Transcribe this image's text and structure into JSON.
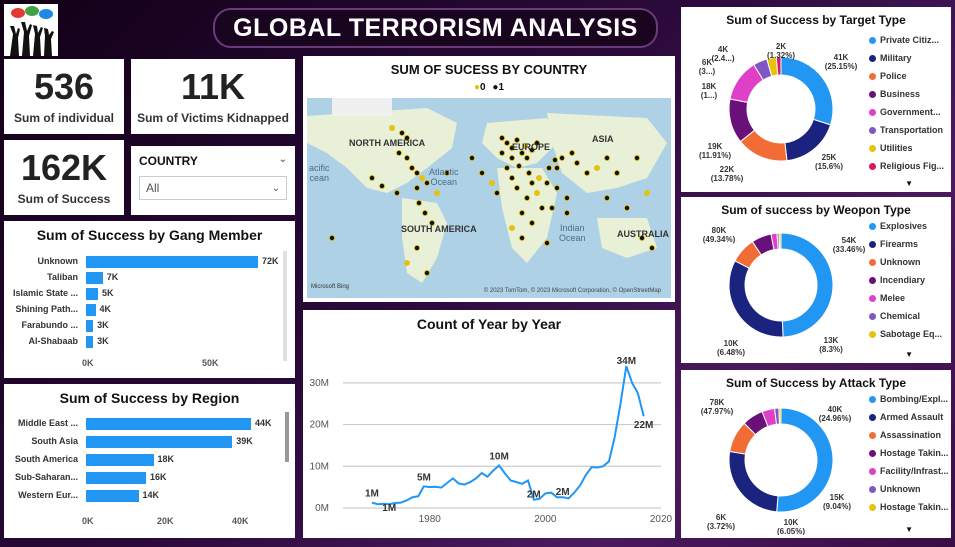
{
  "dashboard": {
    "title": "GLOBAL TERRORISM ANALYSIS"
  },
  "kpis": {
    "individual": {
      "value": "536",
      "label": "Sum of individual"
    },
    "kidnapped": {
      "value": "11K",
      "label": "Sum of Victims Kidnapped"
    },
    "success": {
      "value": "162K",
      "label": "Sum of Success"
    }
  },
  "slicer": {
    "label": "COUNTRY",
    "value": "All"
  },
  "gang_chart": {
    "title": "Sum of Success by Gang Member",
    "items": [
      {
        "label": "Unknown",
        "value": 72,
        "text": "72K"
      },
      {
        "label": "Taliban",
        "value": 7,
        "text": "7K"
      },
      {
        "label": "Islamic State ...",
        "value": 5,
        "text": "5K"
      },
      {
        "label": "Shining Path...",
        "value": 4,
        "text": "4K"
      },
      {
        "label": "Farabundo ...",
        "value": 3,
        "text": "3K"
      },
      {
        "label": "Al-Shabaab",
        "value": 3,
        "text": "3K"
      }
    ],
    "axis": [
      "0K",
      "50K"
    ]
  },
  "region_chart": {
    "title": "Sum of Success by Region",
    "items": [
      {
        "label": "Middle East ...",
        "value": 44,
        "text": "44K"
      },
      {
        "label": "South Asia",
        "value": 39,
        "text": "39K"
      },
      {
        "label": "South America",
        "value": 18,
        "text": "18K"
      },
      {
        "label": "Sub-Saharan...",
        "value": 16,
        "text": "16K"
      },
      {
        "label": "Western Eur...",
        "value": 14,
        "text": "14K"
      }
    ],
    "axis": [
      "0K",
      "20K",
      "40K"
    ]
  },
  "map": {
    "title": "SUM OF SUCESS BY COUNTRY",
    "legend": [
      "0",
      "1"
    ],
    "labels": {
      "na": "NORTH AMERICA",
      "sa": "SOUTH AMERICA",
      "eu": "EUROPE",
      "asia": "ASIA",
      "aus": "AUSTRALIA"
    },
    "oceans": {
      "pacific": "acific\ncean",
      "atlantic": "Atlantic\nOcean",
      "indian": "Indian\nOcean"
    },
    "attribution": "© 2023 TomTom, © 2023 Microsoft Corporation, © OpenStreetMap",
    "bing": "Microsoft Bing"
  },
  "line_chart": {
    "title": "Count of Year by Year",
    "y_ticks": [
      "0M",
      "10M",
      "20M",
      "30M"
    ],
    "x_ticks": [
      "1980",
      "2000",
      "2020"
    ],
    "data_labels": [
      "1M",
      "1M",
      "5M",
      "10M",
      "2M",
      "2M",
      "34M",
      "22M"
    ]
  },
  "chart_data": [
    {
      "type": "bar",
      "title": "Sum of Success by Gang Member",
      "categories": [
        "Unknown",
        "Taliban",
        "Islamic State ...",
        "Shining Path...",
        "Farabundo ...",
        "Al-Shabaab"
      ],
      "values": [
        72000,
        7000,
        5000,
        4000,
        3000,
        3000
      ]
    },
    {
      "type": "bar",
      "title": "Sum of Success by Region",
      "categories": [
        "Middle East ...",
        "South Asia",
        "South America",
        "Sub-Saharan...",
        "Western Eur..."
      ],
      "values": [
        44000,
        39000,
        18000,
        16000,
        14000
      ]
    },
    {
      "type": "line",
      "title": "Count of Year by Year",
      "x": [
        1970,
        1971,
        1972,
        1973,
        1974,
        1975,
        1976,
        1977,
        1978,
        1979,
        1980,
        1981,
        1982,
        1983,
        1984,
        1985,
        1986,
        1987,
        1988,
        1989,
        1990,
        1991,
        1992,
        1993,
        1994,
        1995,
        1996,
        1997,
        1998,
        1999,
        2000,
        2001,
        2002,
        2003,
        2004,
        2005,
        2006,
        2007,
        2008,
        2009,
        2010,
        2011,
        2012,
        2013,
        2014,
        2015,
        2016,
        2017
      ],
      "values": [
        1.3,
        0.9,
        1.0,
        0.9,
        1.2,
        1.3,
        1.8,
        2.6,
        2.8,
        5.2,
        5.0,
        5.1,
        4.9,
        6.0,
        7.1,
        5.9,
        5.6,
        6.2,
        7.1,
        8.4,
        7.5,
        9.0,
        10.2,
        8.3,
        6.6,
        6.2,
        5.8,
        6.6,
        2.0,
        2.2,
        3.5,
        3.7,
        2.6,
        2.6,
        2.3,
        3.7,
        5.4,
        7.9,
        9.8,
        9.7,
        10.0,
        11.2,
        17.0,
        25.0,
        34.0,
        30.0,
        27.5,
        22.0
      ],
      "ylim": [
        0,
        35
      ]
    },
    {
      "type": "pie",
      "title": "Sum of Success by Target Type",
      "categories": [
        "Private Citiz...",
        "Military",
        "Police",
        "Business",
        "Government...",
        "Transportation",
        "Utilities",
        "Religious Fig..."
      ],
      "values": [
        41,
        25,
        22,
        19,
        18,
        6,
        4,
        2
      ],
      "labels": [
        "41K (25.15%)",
        "25K (15.6%)",
        "22K (13.78%)",
        "19K (11.91%)",
        "18K (1...)",
        "6K (3...)",
        "4K (2.4...)",
        "2K (1.32%)"
      ]
    },
    {
      "type": "pie",
      "title": "Sum of success by Weopon Type",
      "categories": [
        "Explosives",
        "Firearms",
        "Unknown",
        "Incendiary",
        "Melee",
        "Chemical",
        "Sabotage Eq..."
      ],
      "values": [
        80,
        54,
        13,
        10,
        3,
        1,
        1
      ],
      "labels": [
        "80K (49.34%)",
        "54K (33.46%)",
        "13K (8.3%)",
        "10K (6.48%)"
      ]
    },
    {
      "type": "pie",
      "title": "Sum of Success by Attack Type",
      "categories": [
        "Bombing/Expl...",
        "Armed Assault",
        "Assassination",
        "Hostage Takin...",
        "Facility/Infrast...",
        "Unknown",
        "Hostage Takin..."
      ],
      "values": [
        78,
        40,
        15,
        10,
        6,
        2,
        1
      ],
      "labels": [
        "78K (47.97%)",
        "40K (24.96%)",
        "15K (9.04%)",
        "10K (6.05%)",
        "6K (3.72%)"
      ]
    }
  ],
  "donuts": {
    "target": {
      "title": "Sum of Success by Target Type",
      "legend": [
        "Private Citiz...",
        "Military",
        "Police",
        "Business",
        "Government...",
        "Transportation",
        "Utilities",
        "Religious Fig..."
      ],
      "colors": [
        "#2196f3",
        "#1a237e",
        "#f26d36",
        "#6a1079",
        "#e040c8",
        "#7e57c2",
        "#e6c20d",
        "#d81b60",
        "#00acc1",
        "#43a047",
        "#8d6e63",
        "#5c6bc0"
      ]
    },
    "weapon": {
      "title": "Sum of success by Weopon Type",
      "legend": [
        "Explosives",
        "Firearms",
        "Unknown",
        "Incendiary",
        "Melee",
        "Chemical",
        "Sabotage Eq..."
      ],
      "colors": [
        "#2196f3",
        "#1a237e",
        "#f26d36",
        "#6a1079",
        "#e040c8",
        "#7e57c2",
        "#e6c20d"
      ]
    },
    "attack": {
      "title": "Sum of Success by Attack Type",
      "legend": [
        "Bombing/Expl...",
        "Armed Assault",
        "Assassination",
        "Hostage Takin...",
        "Facility/Infrast...",
        "Unknown",
        "Hostage Takin..."
      ],
      "colors": [
        "#2196f3",
        "#1a237e",
        "#f26d36",
        "#6a1079",
        "#e040c8",
        "#7e57c2",
        "#e6c20d"
      ]
    }
  }
}
